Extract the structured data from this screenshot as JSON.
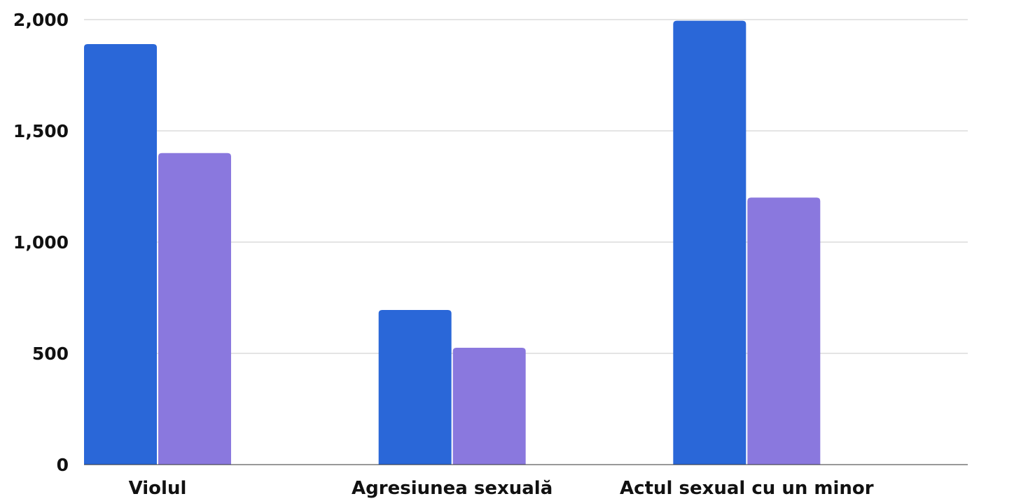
{
  "chart_data": {
    "type": "bar",
    "categories": [
      "Violul",
      "Agresiunea sexuală",
      "Actul sexual cu un minor"
    ],
    "series": [
      {
        "values": [
          1890,
          695,
          1995
        ],
        "color": "#2a67d8"
      },
      {
        "values": [
          1400,
          525,
          1200
        ],
        "color": "#8a78de"
      }
    ],
    "yticks": [
      0,
      500,
      1000,
      1500,
      2000
    ],
    "ytick_labels": [
      "0",
      "500",
      "1,000",
      "1,500",
      "2,000"
    ],
    "ylim": [
      0,
      2000
    ],
    "grid": true,
    "legend": "none",
    "title": "",
    "xlabel": "",
    "ylabel": ""
  }
}
